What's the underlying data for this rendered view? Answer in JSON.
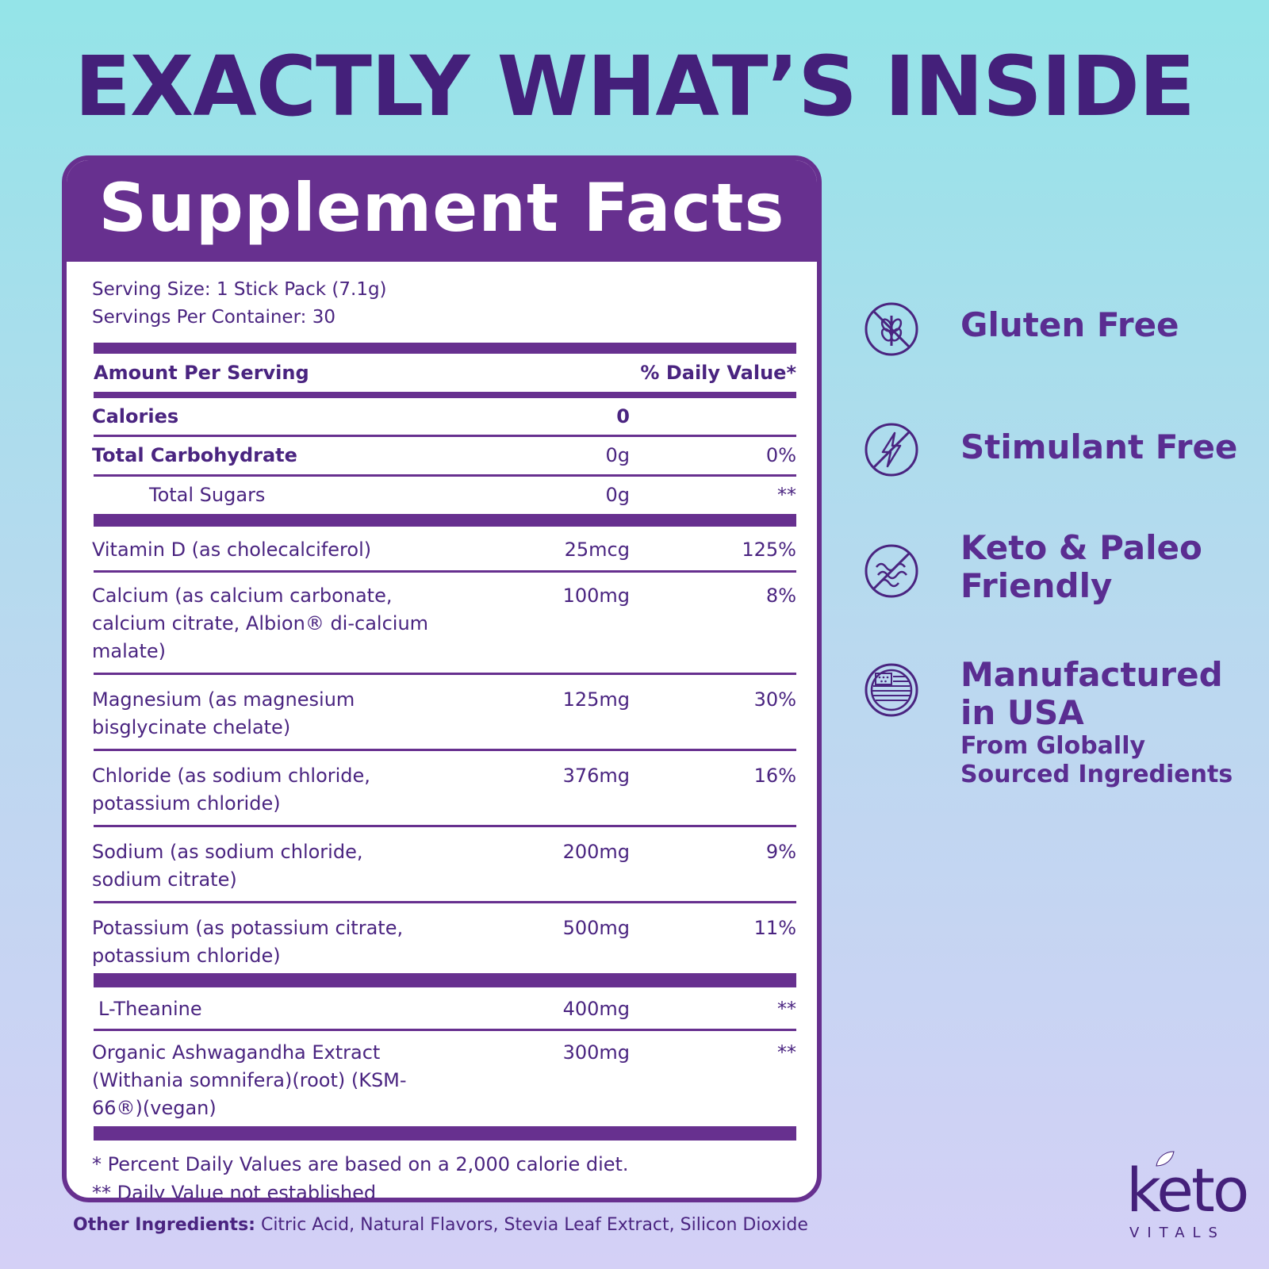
{
  "headline": "EXACTLY WHAT’S INSIDE",
  "facts": {
    "title": "Supplement Facts",
    "serving_size": "Serving Size: 1 Stick Pack (7.1g)",
    "servings_per_container": "Servings Per Container: 30",
    "amount_per_serving": "Amount Per Serving",
    "daily_value_header": "% Daily Value*",
    "calories": {
      "name": "Calories",
      "amount": "0",
      "dv": ""
    },
    "total_carb": {
      "name": "Total Carbohydrate",
      "amount": "0g",
      "dv": "0%"
    },
    "total_sugars": {
      "name": "Total Sugars",
      "amount": "0g",
      "dv": "**"
    },
    "nutrients": [
      {
        "name": "Vitamin D (as cholecalciferol)",
        "amount": "25mcg",
        "dv": "125%"
      },
      {
        "name": "Calcium (as calcium carbonate, calcium citrate, Albion® di-calcium malate)",
        "amount": "100mg",
        "dv": "8%"
      },
      {
        "name": "Magnesium (as magnesium bisglycinate chelate)",
        "amount": "125mg",
        "dv": "30%"
      },
      {
        "name": "Chloride (as sodium chloride, potassium chloride)",
        "amount": "376mg",
        "dv": "16%"
      },
      {
        "name": "Sodium (as sodium chloride, sodium citrate)",
        "amount": "200mg",
        "dv": "9%"
      },
      {
        "name": "Potassium (as potassium citrate, potassium chloride)",
        "amount": "500mg",
        "dv": "11%"
      }
    ],
    "others": [
      {
        "name": "L-Theanine",
        "amount": "400mg",
        "dv": "**"
      },
      {
        "name": "Organic Ashwagandha Extract (Withania somnifera)(root) (KSM-66®)(vegan)",
        "amount": "300mg",
        "dv": "**"
      }
    ],
    "footnote_1": "* Percent Daily Values are based on a 2,000 calorie diet.",
    "footnote_2": "** Daily Value not established"
  },
  "other_ingredients": {
    "label": "Other Ingredients:",
    "text": " Citric Acid, Natural Flavors, Stevia Leaf Extract, Silicon Dioxide"
  },
  "features": [
    {
      "icon": "gluten-free-icon",
      "title": "Gluten Free"
    },
    {
      "icon": "stimulant-free-icon",
      "title": "Stimulant Free"
    },
    {
      "icon": "keto-paleo-icon",
      "title_line1": "Keto & Paleo",
      "title_line2": "Friendly"
    },
    {
      "icon": "usa-flag-icon",
      "title_line1": "Manufactured",
      "title_line2": "in USA",
      "sub_line1": "From Globally",
      "sub_line2": "Sourced Ingredients"
    }
  ],
  "logo": {
    "main": "keto",
    "sub": "VITALS"
  },
  "colors": {
    "primary": "#67308f",
    "dark": "#44207a",
    "text": "#4a2480"
  }
}
